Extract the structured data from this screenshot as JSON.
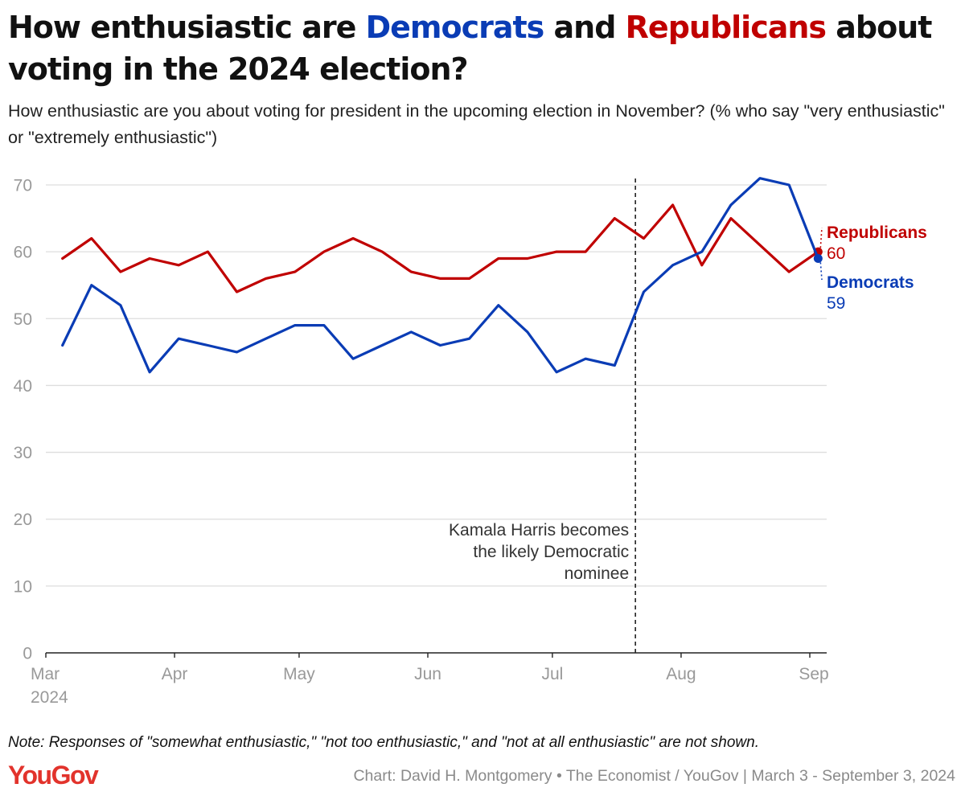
{
  "header": {
    "title_part1": "How enthusiastic are ",
    "title_dem": "Democrats",
    "title_part2": " and ",
    "title_rep": "Republicans",
    "title_part3": " about voting in the 2024 election?",
    "subtitle": "How enthusiastic are you about voting for president in the upcoming election in November? (% who say \"very enthusiastic\" or \"extremely enthusiastic\")"
  },
  "footer": {
    "note": "Note: Responses of \"somewhat enthusiastic,\" \"not too enthusiastic,\" and \"not at all enthusiastic\" are not shown.",
    "logo": "YouGov",
    "credit": "Chart: David H. Montgomery • The Economist / YouGov | March 3 - September 3, 2024"
  },
  "colors": {
    "democrats": "#0a3cb5",
    "republicans": "#c00000",
    "grid": "#dddddd",
    "axis": "#222222",
    "tick_text": "#999999"
  },
  "chart_data": {
    "type": "line",
    "ylim": [
      0,
      70
    ],
    "yticks": [
      0,
      10,
      20,
      30,
      40,
      50,
      60,
      70
    ],
    "grid": true,
    "xlim": [
      "2024-03-01",
      "2024-09-01"
    ],
    "xticks": [
      {
        "date": "2024-03-01",
        "label": "Mar",
        "sublabel": "2024"
      },
      {
        "date": "2024-04-01",
        "label": "Apr"
      },
      {
        "date": "2024-05-01",
        "label": "May"
      },
      {
        "date": "2024-06-01",
        "label": "Jun"
      },
      {
        "date": "2024-07-01",
        "label": "Jul"
      },
      {
        "date": "2024-08-01",
        "label": "Aug"
      },
      {
        "date": "2024-09-01",
        "label": "Sep"
      }
    ],
    "x": [
      "2024-03-05",
      "2024-03-12",
      "2024-03-19",
      "2024-03-26",
      "2024-04-02",
      "2024-04-09",
      "2024-04-16",
      "2024-04-23",
      "2024-04-30",
      "2024-05-07",
      "2024-05-14",
      "2024-05-21",
      "2024-05-28",
      "2024-06-04",
      "2024-06-11",
      "2024-06-18",
      "2024-06-25",
      "2024-07-02",
      "2024-07-09",
      "2024-07-16",
      "2024-07-23",
      "2024-07-30",
      "2024-08-06",
      "2024-08-13",
      "2024-08-20",
      "2024-08-27",
      "2024-09-03"
    ],
    "series": [
      {
        "name": "Republicans",
        "values": [
          59,
          62,
          57,
          59,
          58,
          60,
          54,
          56,
          57,
          60,
          62,
          60,
          57,
          56,
          56,
          59,
          59,
          60,
          60,
          65,
          62,
          67,
          58,
          65,
          61,
          57,
          60
        ]
      },
      {
        "name": "Democrats",
        "values": [
          46,
          55,
          52,
          42,
          47,
          46,
          45,
          47,
          49,
          49,
          44,
          46,
          48,
          46,
          47,
          52,
          48,
          42,
          44,
          43,
          54,
          58,
          60,
          67,
          71,
          70,
          59
        ]
      }
    ],
    "end_labels": [
      {
        "series": "Republicans",
        "name": "Republicans",
        "value": "60"
      },
      {
        "series": "Democrats",
        "name": "Democrats",
        "value": "59"
      }
    ],
    "annotation": {
      "date": "2024-07-21",
      "lines": [
        "Kamala Harris becomes",
        "the likely Democratic",
        "nominee"
      ]
    }
  }
}
